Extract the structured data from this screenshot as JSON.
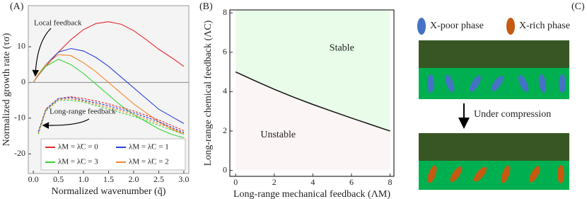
{
  "chart_data": [
    {
      "type": "line",
      "panel": "(A)",
      "xlabel": "Normalized wavenumber (q̃)",
      "ylabel": "Normalized growth rate (τσ)",
      "annotations": [
        "Local feedback",
        "Long-range feedback"
      ],
      "x": [
        0,
        0.1,
        0.25,
        0.5,
        0.75,
        1,
        1.25,
        1.5,
        1.75,
        2,
        2.25,
        2.5,
        2.75,
        3
      ],
      "series": [
        {
          "name": "λ̃M = λ̃C = 0",
          "color": "#e8282b",
          "values": [
            0,
            2,
            4.5,
            8.5,
            12,
            14.8,
            16.5,
            17,
            16.3,
            14.5,
            12,
            9.3,
            7,
            4.5
          ]
        },
        {
          "name": "λ̃M = λ̃C = 1",
          "color": "#2b3fd6",
          "values": [
            0,
            2.2,
            5,
            8.5,
            9.5,
            8.8,
            7,
            4.5,
            1.5,
            -1.5,
            -4.5,
            -7.5,
            -9.5,
            -11.5
          ]
        },
        {
          "name": "λ̃M = λ̃C = 3",
          "color": "#3ad43a",
          "values": [
            0,
            2.2,
            4.5,
            6.5,
            5,
            2.5,
            -0.5,
            -3.5,
            -6.5,
            -9,
            -11,
            -13,
            -14.5,
            -15.5
          ]
        },
        {
          "name": "λ̃M = λ̃C = 2",
          "color": "#f5862e",
          "values": [
            0,
            2.3,
            5,
            7.8,
            7.5,
            5.5,
            3,
            0,
            -3,
            -6,
            -8.5,
            -11,
            -13,
            -14.5
          ]
        },
        {
          "color": "#e8282b",
          "dashed": true,
          "values": [
            null,
            -14,
            -7.5,
            -4.5,
            -4,
            -4.5,
            -5.2,
            -6,
            -7,
            -8,
            -9.2,
            -10.5,
            -12,
            -13.5
          ]
        },
        {
          "color": "#2b3fd6",
          "dashed": true,
          "values": [
            null,
            -13.8,
            -7.5,
            -4.5,
            -4.2,
            -5,
            -5.7,
            -6.5,
            -7.5,
            -8.5,
            -9.7,
            -11,
            -12.5,
            -14
          ]
        },
        {
          "color": "#3ad43a",
          "dashed": true,
          "values": [
            null,
            -14.5,
            -8,
            -5,
            -5,
            -5.5,
            -6.5,
            -7.5,
            -8.5,
            -9.5,
            -10.7,
            -12,
            -13.3,
            -14.5
          ]
        },
        {
          "color": "#f5862e",
          "dashed": true,
          "values": [
            null,
            -14.2,
            -7.8,
            -4.8,
            -4.6,
            -5.2,
            -6.1,
            -7,
            -8,
            -9,
            -10.2,
            -11.5,
            -12.8,
            -14.2
          ]
        }
      ],
      "xlim": [
        -0.1,
        3.1
      ],
      "ylim": [
        -25.5,
        21.5
      ],
      "xticks": [
        {
          "value": 0,
          "label": "0.0"
        },
        0.5,
        {
          "value": 1,
          "label": "1.0"
        },
        1.5,
        {
          "value": 2,
          "label": "2.0"
        },
        2.5,
        {
          "value": 3,
          "label": "3.0"
        }
      ],
      "yticks": [
        -20,
        -10,
        0,
        10
      ]
    },
    {
      "type": "region",
      "panel": "(B)",
      "xlabel": "Long-range mechanical feedback (ΛM)",
      "ylabel": "Long-range chemical feedback (ΛC)",
      "regions": [
        "Stable",
        "Unstable"
      ],
      "region_colors": [
        "#e9fbe9",
        "#fcf5f5"
      ],
      "color": "#111111",
      "x": [
        0,
        1,
        2,
        3,
        4,
        5,
        6,
        7,
        8
      ],
      "values": [
        5,
        4.55,
        4.12,
        3.72,
        3.35,
        3,
        2.66,
        2.33,
        2
      ],
      "xlim": [
        -0.3,
        8.2
      ],
      "ylim": [
        -0.3,
        8.15
      ],
      "xticks": [
        0,
        2,
        4,
        6,
        8
      ],
      "yticks": [
        0,
        2,
        4,
        6,
        8
      ]
    }
  ],
  "diagram": {
    "panel": "(C)",
    "legend": [
      "X-poor phase",
      "X-rich phase"
    ],
    "caption": "Under compression"
  }
}
